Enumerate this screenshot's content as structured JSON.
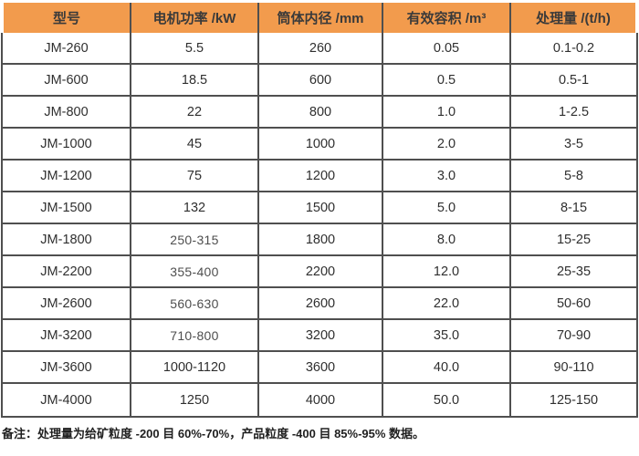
{
  "colors": {
    "header_bg": "#F29B4D",
    "grid_border": "#4F4F4F",
    "text": "#2F2F2F",
    "muted_text": "#4E4E4E",
    "footnote_text": "#1F1F1F"
  },
  "table": {
    "headers": [
      "型号",
      "电机功率 /kW",
      "筒体内径 /mm",
      "有效容积 /m³",
      "处理量 /(t/h)"
    ],
    "rows": [
      {
        "model": "JM-260",
        "power": "5.5",
        "diameter": "260",
        "volume": "0.05",
        "capacity": "0.1-0.2"
      },
      {
        "model": "JM-600",
        "power": "18.5",
        "diameter": "600",
        "volume": "0.5",
        "capacity": "0.5-1"
      },
      {
        "model": "JM-800",
        "power": "22",
        "diameter": "800",
        "volume": "1.0",
        "capacity": "1-2.5"
      },
      {
        "model": "JM-1000",
        "power": "45",
        "diameter": "1000",
        "volume": "2.0",
        "capacity": "3-5"
      },
      {
        "model": "JM-1200",
        "power": "75",
        "diameter": "1200",
        "volume": "3.0",
        "capacity": "5-8"
      },
      {
        "model": "JM-1500",
        "power": "132",
        "diameter": "1500",
        "volume": "5.0",
        "capacity": "8-15"
      },
      {
        "model": "JM-1800",
        "power": "250-315",
        "diameter": "1800",
        "volume": "8.0",
        "capacity": "15-25",
        "power_muted": true
      },
      {
        "model": "JM-2200",
        "power": "355-400",
        "diameter": "2200",
        "volume": "12.0",
        "capacity": "25-35",
        "power_muted": true
      },
      {
        "model": "JM-2600",
        "power": "560-630",
        "diameter": "2600",
        "volume": "22.0",
        "capacity": "50-60",
        "power_muted": true
      },
      {
        "model": "JM-3200",
        "power": "710-800",
        "diameter": "3200",
        "volume": "35.0",
        "capacity": "70-90",
        "power_muted": true
      },
      {
        "model": "JM-3600",
        "power": "1000-1120",
        "diameter": "3600",
        "volume": "40.0",
        "capacity": "90-110"
      },
      {
        "model": "JM-4000",
        "power": "1250",
        "diameter": "4000",
        "volume": "50.0",
        "capacity": "125-150"
      }
    ]
  },
  "footnote": "备注：处理量为给矿粒度 -200 目 60%-70%，产品粒度 -400 目 85%-95% 数据。",
  "chart_data": {
    "type": "table",
    "columns": [
      "型号",
      "电机功率 /kW",
      "筒体内径 /mm",
      "有效容积 /m³",
      "处理量 /(t/h)"
    ],
    "rows": [
      [
        "JM-260",
        "5.5",
        "260",
        "0.05",
        "0.1-0.2"
      ],
      [
        "JM-600",
        "18.5",
        "600",
        "0.5",
        "0.5-1"
      ],
      [
        "JM-800",
        "22",
        "800",
        "1.0",
        "1-2.5"
      ],
      [
        "JM-1000",
        "45",
        "1000",
        "2.0",
        "3-5"
      ],
      [
        "JM-1200",
        "75",
        "1200",
        "3.0",
        "5-8"
      ],
      [
        "JM-1500",
        "132",
        "1500",
        "5.0",
        "8-15"
      ],
      [
        "JM-1800",
        "250-315",
        "1800",
        "8.0",
        "15-25"
      ],
      [
        "JM-2200",
        "355-400",
        "2200",
        "12.0",
        "25-35"
      ],
      [
        "JM-2600",
        "560-630",
        "2600",
        "22.0",
        "50-60"
      ],
      [
        "JM-3200",
        "710-800",
        "3200",
        "35.0",
        "70-90"
      ],
      [
        "JM-3600",
        "1000-1120",
        "3600",
        "40.0",
        "90-110"
      ],
      [
        "JM-4000",
        "1250",
        "4000",
        "50.0",
        "125-150"
      ]
    ]
  }
}
